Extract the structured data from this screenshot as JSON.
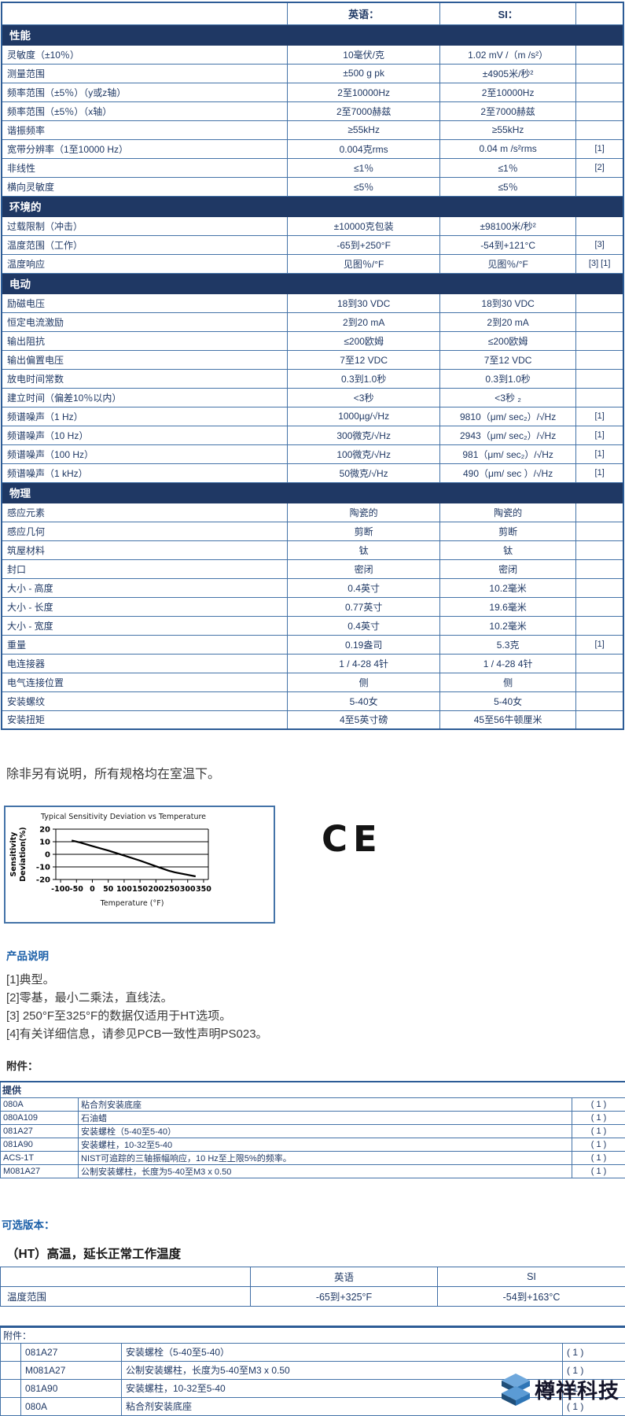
{
  "page": {
    "room_temp_note": "除非另有说明，所有规格均在室温下。",
    "ce_mark": "CE",
    "watermark_text": "樽祥科技",
    "colors": {
      "section_bar": "#1f3864",
      "table_border": "#4473a8",
      "heading_blue": "#1b5fa8",
      "text_navy": "#1f3864"
    }
  },
  "spec_table": {
    "columns": {
      "english": "英语：",
      "si": "SI："
    },
    "sections": [
      {
        "title": "性能",
        "rows": [
          {
            "label": "灵敏度（±10％）",
            "english": "10毫伏/克",
            "si": "1.02 mV /（m /s²）",
            "note": ""
          },
          {
            "label": "测量范围",
            "english": "±500 g pk",
            "si": "±4905米/秒²",
            "note": ""
          },
          {
            "label": "频率范围（±5％）（y或z轴）",
            "english": "2至10000Hz",
            "si": "2至10000Hz",
            "note": ""
          },
          {
            "label": "频率范围（±5％）（x轴）",
            "english": "2至7000赫兹",
            "si": "2至7000赫兹",
            "note": ""
          },
          {
            "label": "谐振频率",
            "english": "≥55kHz",
            "si": "≥55kHz",
            "note": ""
          },
          {
            "label": "宽带分辨率（1至10000 Hz）",
            "english": "0.004克rms",
            "si": "0.04 m /s²rms",
            "note": "[1]"
          },
          {
            "label": "非线性",
            "english": "≤1％",
            "si": "≤1％",
            "note": "[2]"
          },
          {
            "label": "横向灵敏度",
            "english": "≤5％",
            "si": "≤5％",
            "note": ""
          }
        ]
      },
      {
        "title": "环境的",
        "rows": [
          {
            "label": "过载限制（冲击）",
            "english": "±10000克包装",
            "si": "±98100米/秒²",
            "note": ""
          },
          {
            "label": "温度范围（工作）",
            "english": "-65到+250°F",
            "si": "-54到+121°C",
            "note": "[3]"
          },
          {
            "label": "温度响应",
            "english": "见图％/°F",
            "si": "见图％/°F",
            "note": "[3] [1]"
          }
        ]
      },
      {
        "title": "电动",
        "rows": [
          {
            "label": "励磁电压",
            "english": "18到30 VDC",
            "si": "18到30 VDC",
            "note": ""
          },
          {
            "label": "恒定电流激励",
            "english": "2到20 mA",
            "si": "2到20 mA",
            "note": ""
          },
          {
            "label": "输出阻抗",
            "english": "≤200欧姆",
            "si": "≤200欧姆",
            "note": ""
          },
          {
            "label": "输出偏置电压",
            "english": "7至12 VDC",
            "si": "7至12 VDC",
            "note": ""
          },
          {
            "label": "放电时间常数",
            "english": "0.3到1.0秒",
            "si": "0.3到1.0秒",
            "note": ""
          },
          {
            "label": "建立时间（偏差10％以内）",
            "english": "<3秒",
            "si": "<3秒 ₂",
            "note": ""
          },
          {
            "label": "频谱噪声（1 Hz）",
            "english": "1000µg/√Hz",
            "si": "9810（μm/ sec₂）/√Hz",
            "note": "[1]"
          },
          {
            "label": "频谱噪声（10 Hz）",
            "english": "300微克/√Hz",
            "si": "2943（μm/ sec₂）/√Hz",
            "note": "[1]"
          },
          {
            "label": "频谱噪声（100 Hz）",
            "english": "100微克/√Hz",
            "si": "981（μm/ sec₂）/√Hz",
            "note": "[1]"
          },
          {
            "label": "频谱噪声（1 kHz）",
            "english": "50微克/√Hz",
            "si": "490（μm/ sec ）/√Hz",
            "note": "[1]"
          }
        ]
      },
      {
        "title": "物理",
        "rows": [
          {
            "label": "感应元素",
            "english": "陶瓷的",
            "si": "陶瓷的",
            "note": ""
          },
          {
            "label": "感应几何",
            "english": "剪断",
            "si": "剪断",
            "note": ""
          },
          {
            "label": "筑屋材料",
            "english": "钛",
            "si": "钛",
            "note": ""
          },
          {
            "label": "封口",
            "english": "密闭",
            "si": "密闭",
            "note": ""
          },
          {
            "label": "大小 - 高度",
            "english": "0.4英寸",
            "si": "10.2毫米",
            "note": ""
          },
          {
            "label": "大小 - 长度",
            "english": "0.77英寸",
            "si": "19.6毫米",
            "note": ""
          },
          {
            "label": "大小 - 宽度",
            "english": "0.4英寸",
            "si": "10.2毫米",
            "note": ""
          },
          {
            "label": "重量",
            "english": "0.19盎司",
            "si": "5.3克",
            "note": "[1]"
          },
          {
            "label": "电连接器",
            "english": "1 / 4-28 4针",
            "si": "1 / 4-28 4针",
            "note": ""
          },
          {
            "label": "电气连接位置",
            "english": "侧",
            "si": "侧",
            "note": ""
          },
          {
            "label": "安装螺纹",
            "english": "5-40女",
            "si": "5-40女",
            "note": ""
          },
          {
            "label": "安装扭矩",
            "english": "4至5英寸磅",
            "si": "45至56牛顿厘米",
            "note": ""
          }
        ]
      }
    ]
  },
  "chart_data": {
    "type": "line",
    "title": "Typical Sensitivity Deviation vs Temperature",
    "xlabel": "Temperature (°F)",
    "ylabel_line1": "Sensitivity",
    "ylabel_line2": "Deviation(%)",
    "xlim": [
      -115,
      365
    ],
    "ylim": [
      -20,
      20
    ],
    "x_ticks": [
      -100,
      -50,
      0,
      50,
      100,
      150,
      200,
      250,
      300,
      350
    ],
    "y_ticks": [
      20,
      10,
      0,
      -10,
      -20
    ],
    "grid": true,
    "series": [
      {
        "name": "typical-sensitivity-deviation",
        "points": [
          [
            -65,
            11
          ],
          [
            -40,
            9.5
          ],
          [
            0,
            6.5
          ],
          [
            50,
            3
          ],
          [
            100,
            -1
          ],
          [
            150,
            -5
          ],
          [
            200,
            -9.5
          ],
          [
            240,
            -13
          ],
          [
            260,
            -14.3
          ],
          [
            300,
            -16.3
          ],
          [
            325,
            -17.5
          ]
        ]
      }
    ]
  },
  "product_notes": {
    "heading": "产品说明",
    "items": [
      "[1]典型。",
      "[2]零基，最小二乘法，直线法。",
      "[3] 250°F至325°F的数据仅适用于HT选项。",
      "[4]有关详细信息，请参见PCB一致性声明PS023。"
    ],
    "attachments_heading": "附件："
  },
  "supplied_table": {
    "header": "提供",
    "rows": [
      {
        "model": "080A",
        "desc": "粘合剂安装底座",
        "qty": "( 1 )"
      },
      {
        "model": "080A109",
        "desc": "石油蜡",
        "qty": "( 1 )"
      },
      {
        "model": "081A27",
        "desc": "安装螺栓（5-40至5-40）",
        "qty": "( 1 )"
      },
      {
        "model": "081A90",
        "desc": "安装螺柱，10-32至5-40",
        "qty": "( 1 )"
      },
      {
        "model": "ACS-1T",
        "desc": "NIST可追踪的三轴振幅响应，10 Hz至上限5%的频率。",
        "qty": "( 1 )"
      },
      {
        "model": "M081A27",
        "desc": "公制安装螺柱，长度为5-40至M3 x 0.50",
        "qty": "( 1 )"
      }
    ]
  },
  "optional_versions": {
    "heading": "可选版本：",
    "ht_heading": "（HT）高温，延长正常工作温度",
    "table": {
      "col_english": "英语",
      "col_si": "SI",
      "rows": [
        {
          "label": "温度范围",
          "english": "-65到+325°F",
          "si": "-54到+163°C"
        }
      ]
    }
  },
  "attachments_table": {
    "header": "附件：",
    "rows": [
      {
        "model": "081A27",
        "desc": "安装螺栓（5-40至5-40）",
        "qty": "( 1 )"
      },
      {
        "model": "M081A27",
        "desc": "公制安装螺柱，长度为5-40至M3 x 0.50",
        "qty": "( 1 )"
      },
      {
        "model": "081A90",
        "desc": "安装螺柱，10-32至5-40",
        "qty": "( 1 )"
      },
      {
        "model": "080A",
        "desc": "粘合剂安装底座",
        "qty": "( 1 )"
      }
    ]
  }
}
